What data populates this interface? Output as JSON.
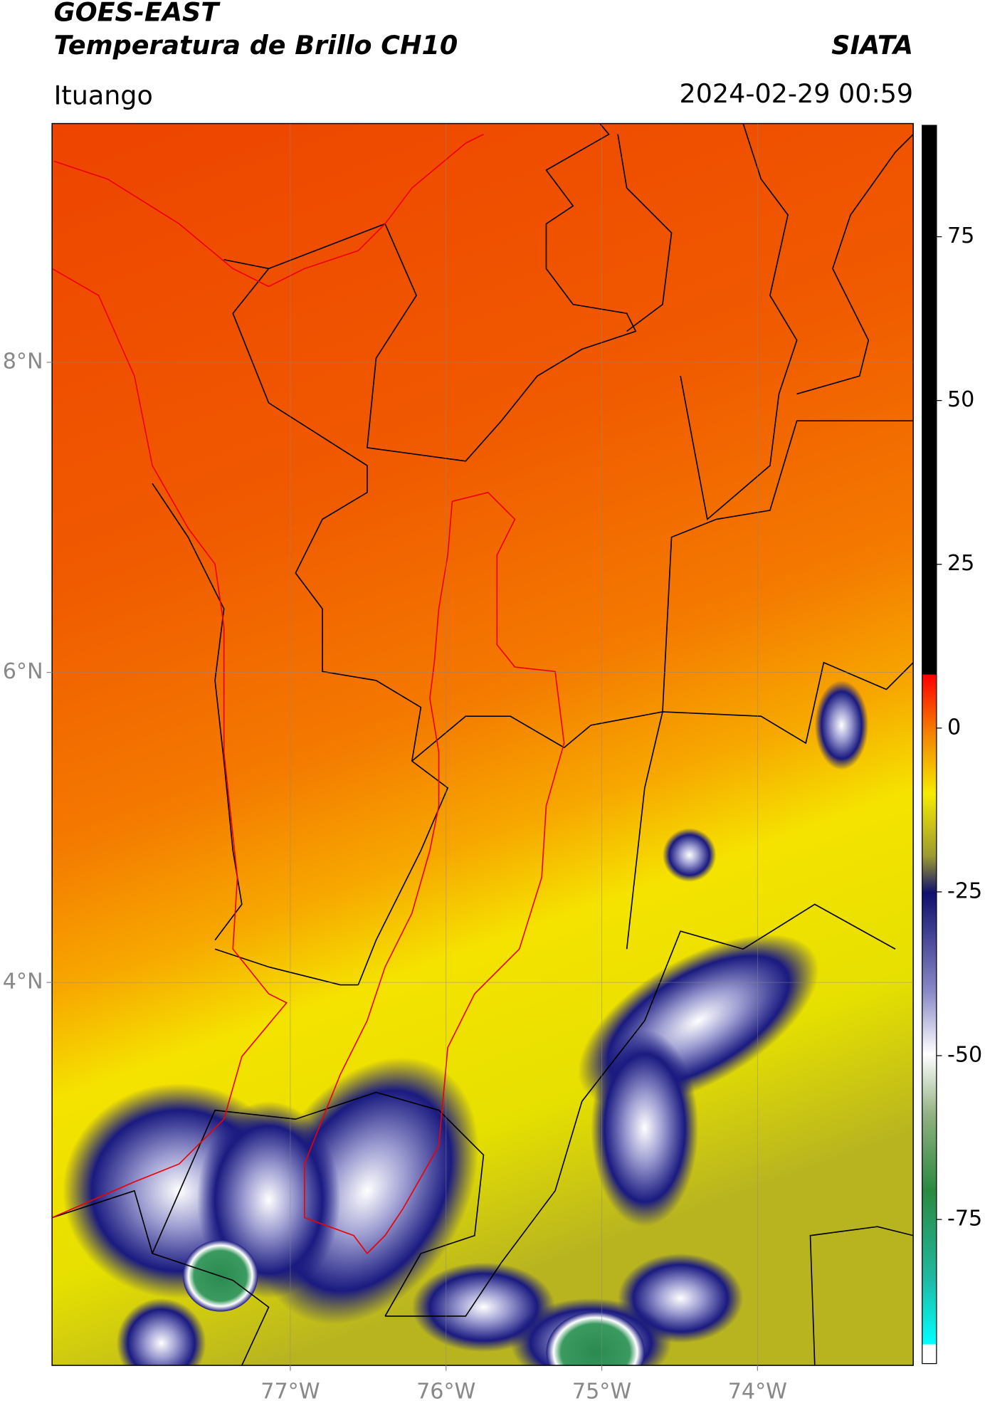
{
  "chart_data": {
    "type": "map",
    "title": "GOES-EAST",
    "subtitle": "Temperatura de Brillo CH10",
    "source": "SIATA",
    "location": "Ituango",
    "datetime": "2024-02-29 00:59",
    "xlim": [
      -78.53,
      -73.0
    ],
    "ylim": [
      1.53,
      9.54
    ],
    "xticks": [
      {
        "value": -77,
        "label": "77°W"
      },
      {
        "value": -76,
        "label": "76°W"
      },
      {
        "value": -75,
        "label": "75°W"
      },
      {
        "value": -74,
        "label": "74°W"
      }
    ],
    "yticks": [
      {
        "value": 4,
        "label": "4°N"
      },
      {
        "value": 6,
        "label": "6°N"
      },
      {
        "value": 8,
        "label": "8°N"
      }
    ],
    "grid": true,
    "colorbar": {
      "lim": [
        -97,
        92
      ],
      "ticks": [
        -75,
        -50,
        -25,
        0,
        25,
        50,
        75
      ]
    }
  }
}
